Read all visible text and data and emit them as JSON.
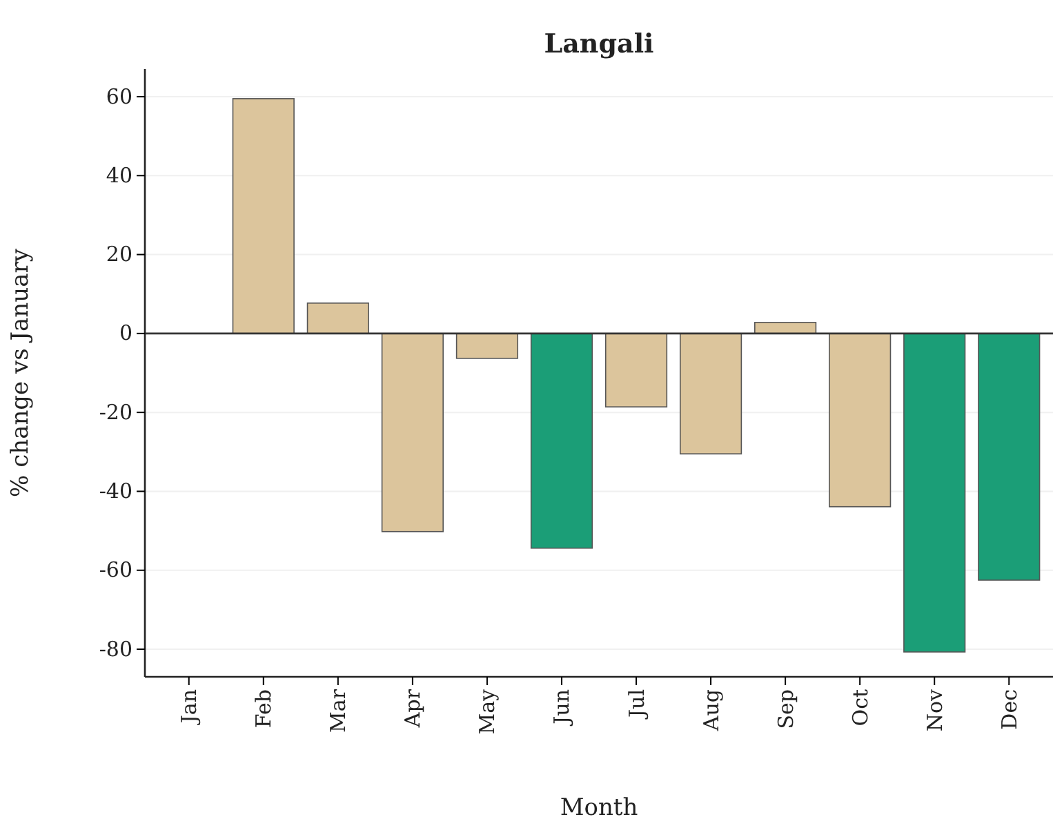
{
  "chart_data": {
    "type": "bar",
    "title": "Langali",
    "xlabel": "Month",
    "ylabel": "% change vs January",
    "categories": [
      "Jan",
      "Feb",
      "Mar",
      "Apr",
      "May",
      "Jun",
      "Jul",
      "Aug",
      "Sep",
      "Oct",
      "Nov",
      "Dec"
    ],
    "values": [
      0,
      59.5,
      7.7,
      -50.2,
      -6.3,
      -54.4,
      -18.6,
      -30.5,
      2.8,
      -43.9,
      -80.7,
      -62.5
    ],
    "colors": [
      "#dcc59c",
      "#dcc59c",
      "#dcc59c",
      "#dcc59c",
      "#dcc59c",
      "#1b9e77",
      "#dcc59c",
      "#dcc59c",
      "#dcc59c",
      "#dcc59c",
      "#1b9e77",
      "#1b9e77"
    ],
    "ylim": [
      -87,
      67
    ],
    "yticks": [
      -80,
      -60,
      -40,
      -20,
      0,
      20,
      40,
      60
    ],
    "grid": "y",
    "ref_lines": [
      {
        "axis": "y",
        "value": 0,
        "color": "#333333"
      }
    ]
  }
}
